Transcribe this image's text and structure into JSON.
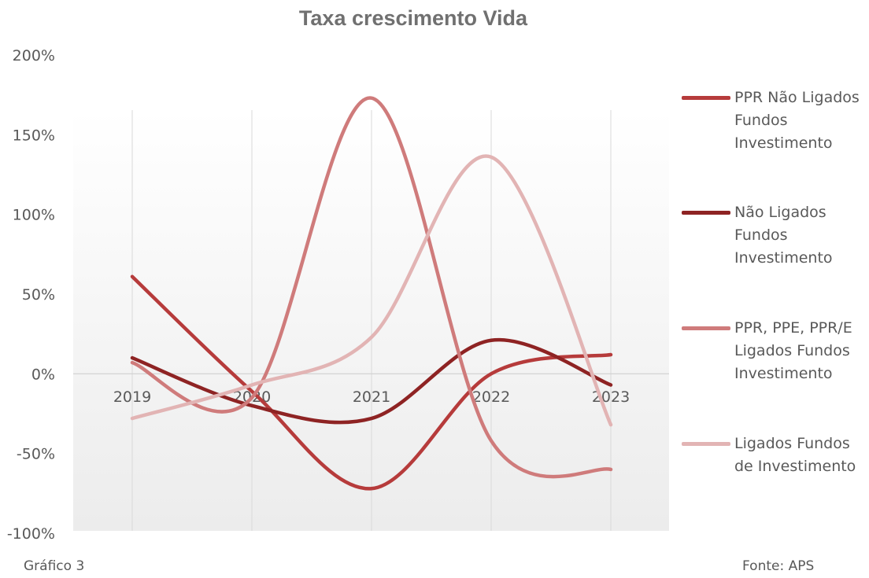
{
  "chart_data": {
    "type": "line",
    "title": "Taxa crescimento Vida",
    "categories": [
      "2019",
      "2020",
      "2021",
      "2022",
      "2023"
    ],
    "y_ticks": [
      "200%",
      "150%",
      "100%",
      "50%",
      "0%",
      "-50%",
      "-100%"
    ],
    "ylim": [
      -100,
      200
    ],
    "y_unit": "%",
    "smooth": true,
    "grid": "vertical",
    "legend_position": "right",
    "series": [
      {
        "name": "PPR Não Ligados Fundos Investimento",
        "color": "#B63B3B",
        "values": [
          61,
          -11,
          -72,
          0,
          12
        ]
      },
      {
        "name": "Não Ligados Fundos Investimento",
        "color": "#8E2323",
        "values": [
          10,
          -20,
          -28,
          21,
          -7
        ]
      },
      {
        "name": "PPR, PPE, PPR/E Ligados Fundos Investimento",
        "color": "#CF7B7B",
        "values": [
          7,
          -15,
          173,
          -42,
          -60
        ]
      },
      {
        "name": "Ligados Fundos de Investimento",
        "color": "#E2B4B4",
        "values": [
          -28,
          -7,
          23,
          136,
          -32
        ]
      }
    ]
  },
  "legend": [
    {
      "lines": [
        "PPR Não Ligados",
        "Fundos",
        "Investimento"
      ]
    },
    {
      "lines": [
        "Não Ligados",
        "Fundos",
        "Investimento"
      ]
    },
    {
      "lines": [
        "PPR, PPE, PPR/E",
        "Ligados Fundos",
        "Investimento"
      ]
    },
    {
      "lines": [
        "Ligados Fundos",
        "de Investimento"
      ]
    }
  ],
  "captions": {
    "left": "Gráfico 3",
    "right": "Fonte: APS"
  }
}
